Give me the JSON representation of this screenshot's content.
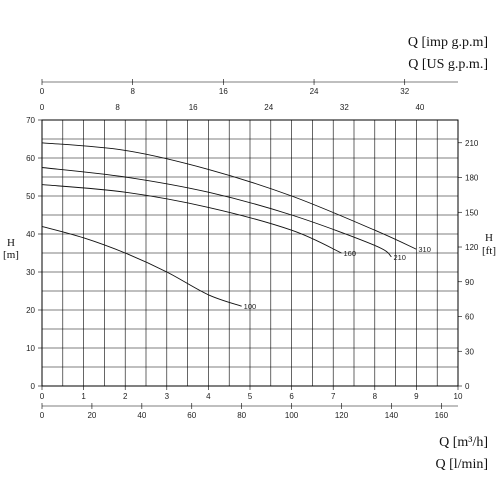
{
  "chart_data": {
    "type": "line",
    "top_unit_labels": [
      "Q [imp g.p.m]",
      "Q [US g.p.m.]"
    ],
    "bottom_unit_labels": [
      "Q [m³/h]",
      "Q [l/min]"
    ],
    "left_axis_label": {
      "main": "H",
      "unit": "[m]"
    },
    "right_axis_label": {
      "main": "H",
      "unit": "[ft]"
    },
    "x_m3h": {
      "range": [
        0,
        10
      ],
      "ticks": [
        "0",
        "1",
        "2",
        "3",
        "4",
        "5",
        "6",
        "7",
        "8",
        "9",
        "10"
      ]
    },
    "x_lmin": {
      "range": [
        0,
        166.67
      ],
      "ticks": [
        "0",
        "20",
        "40",
        "60",
        "80",
        "100",
        "120",
        "140",
        "160"
      ],
      "tick_values": [
        0,
        20,
        40,
        60,
        80,
        100,
        120,
        140,
        160
      ]
    },
    "x_imp": {
      "range": [
        0,
        36.7
      ],
      "ticks": [
        "0",
        "8",
        "16",
        "24",
        "32"
      ],
      "tick_values": [
        0,
        8,
        16,
        24,
        32
      ]
    },
    "x_us": {
      "range": [
        0,
        44.03
      ],
      "ticks": [
        "0",
        "8",
        "16",
        "24",
        "32",
        "40"
      ],
      "tick_values": [
        0,
        8,
        16,
        24,
        32,
        40
      ]
    },
    "y_m": {
      "range": [
        0,
        70
      ],
      "ticks": [
        "0",
        "10",
        "20",
        "30",
        "40",
        "50",
        "60",
        "70"
      ],
      "tick_values": [
        0,
        10,
        20,
        30,
        40,
        50,
        60,
        70
      ]
    },
    "y_ft": {
      "range": [
        0,
        229.66
      ],
      "ticks": [
        "0",
        "30",
        "60",
        "90",
        "120",
        "150",
        "180",
        "210"
      ],
      "tick_values": [
        0,
        30,
        60,
        90,
        120,
        150,
        180,
        210
      ]
    },
    "grid": true,
    "series": [
      {
        "name": "310",
        "x": [
          0,
          2,
          4,
          6,
          8,
          9
        ],
        "y": [
          64,
          62,
          57,
          50,
          41,
          36
        ]
      },
      {
        "name": "210",
        "x": [
          0,
          2,
          4,
          6,
          8,
          8.4
        ],
        "y": [
          57.5,
          55,
          51,
          45,
          37,
          34
        ]
      },
      {
        "name": "160",
        "x": [
          0,
          2,
          4,
          6,
          7.2
        ],
        "y": [
          53,
          51,
          47,
          41,
          35
        ]
      },
      {
        "name": "100",
        "x": [
          0,
          1,
          2,
          3,
          4,
          4.8
        ],
        "y": [
          42,
          39,
          35,
          30,
          24,
          21
        ]
      }
    ]
  }
}
